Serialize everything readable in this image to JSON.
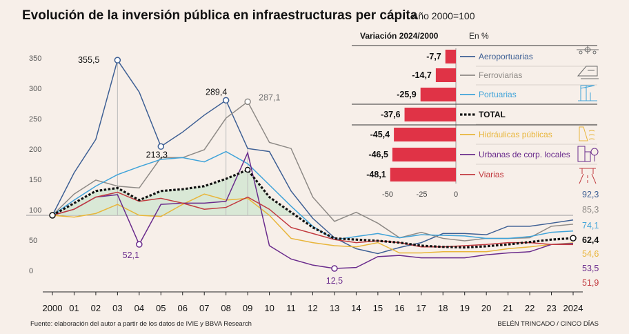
{
  "title": "Evolución de la inversión pública en infraestructuras per cápita",
  "subtitle": "Año 2000=100",
  "source": "Fuente: elaboración del autor a partir de los datos de IVIE y BBVA Research",
  "credit": "BELÉN TRINCADO / CINCO DÍAS",
  "chart_data": [
    {
      "type": "line",
      "x": [
        "2000",
        "01",
        "02",
        "03",
        "04",
        "05",
        "06",
        "07",
        "08",
        "09",
        "10",
        "11",
        "12",
        "13",
        "14",
        "15",
        "16",
        "17",
        "18",
        "19",
        "20",
        "21",
        "22",
        "23",
        "2024"
      ],
      "yticks": [
        "350",
        "300",
        "250",
        "200",
        "150",
        "100",
        "50",
        "0"
      ],
      "ylim": [
        0,
        350
      ],
      "baseline": 100,
      "series": [
        {
          "name": "Aeroportuarias",
          "color": "#3d5f94",
          "values": [
            100,
            170,
            225,
            355.5,
            303,
            213.3,
            237,
            265,
            289.4,
            210,
            205,
            140,
            95,
            63,
            45,
            37,
            47,
            55,
            70,
            70,
            68,
            82,
            82,
            87,
            92.3
          ]
        },
        {
          "name": "Ferroviarias",
          "color": "#8e8a86",
          "values": [
            100,
            135,
            158,
            148,
            145,
            195,
            195,
            208,
            260,
            287.1,
            220,
            210,
            130,
            90,
            105,
            87,
            63,
            72,
            62,
            58,
            62,
            62,
            63,
            82,
            85.3
          ]
        },
        {
          "name": "Portuarias",
          "color": "#3fa3d9",
          "values": [
            100,
            125,
            148,
            167,
            180,
            192,
            195,
            188,
            205,
            185,
            150,
            115,
            82,
            60,
            65,
            70,
            63,
            68,
            67,
            66,
            62,
            62,
            65,
            72,
            74.1
          ]
        },
        {
          "name": "TOTAL",
          "color": "#111111",
          "values": [
            100,
            120,
            140,
            145,
            125,
            140,
            143,
            148,
            160,
            175,
            130,
            105,
            80,
            62,
            60,
            58,
            55,
            50,
            48,
            47,
            49,
            52,
            56,
            60,
            62.4
          ]
        },
        {
          "name": "Hidráulicas públicas",
          "color": "#e8b53a",
          "values": [
            100,
            97,
            103,
            118,
            100,
            98,
            118,
            135,
            125,
            128,
            100,
            62,
            55,
            50,
            48,
            55,
            38,
            38,
            40,
            40,
            40,
            45,
            48,
            52,
            54.6
          ]
        },
        {
          "name": "Urbanas de corp. locales",
          "color": "#6a2b8c",
          "values": [
            100,
            110,
            130,
            134,
            52.1,
            118,
            120,
            120,
            123,
            203,
            50,
            28,
            18,
            12.5,
            14,
            32,
            34,
            30,
            30,
            30,
            35,
            38,
            40,
            52,
            53.5
          ]
        },
        {
          "name": "Viarias",
          "color": "#c23a3f",
          "values": [
            100,
            110,
            130,
            138,
            123,
            128,
            120,
            110,
            113,
            130,
            110,
            80,
            70,
            60,
            55,
            58,
            55,
            48,
            48,
            50,
            52,
            55,
            55,
            52,
            51.9
          ]
        }
      ],
      "annotations": [
        {
          "label": "355,5",
          "x": "03",
          "y": 355.5
        },
        {
          "label": "213,3",
          "x": "05",
          "y": 213.3
        },
        {
          "label": "289,4",
          "x": "08",
          "y": 289.4
        },
        {
          "label": "287,1",
          "x": "09",
          "y": 287.1
        },
        {
          "label": "52,1",
          "x": "04",
          "y": 52.1
        },
        {
          "label": "12,5",
          "x": "13",
          "y": 12.5
        }
      ],
      "end_labels": [
        "92,3",
        "85,3",
        "74,1",
        "62,4",
        "54,6",
        "53,5",
        "51,9"
      ]
    },
    {
      "type": "bar",
      "title": "Variación 2024/2000",
      "unit": "En %",
      "categories": [
        "Aeroportuarias",
        "Ferroviarias",
        "Portuarias",
        "TOTAL",
        "Hidráulicas públicas",
        "Urbanas de corp. locales",
        "Viarias"
      ],
      "values": [
        -7.7,
        -14.7,
        -25.9,
        -37.6,
        -45.4,
        -46.5,
        -48.1
      ],
      "value_labels": [
        "-7,7",
        "-14,7",
        "-25,9",
        "-37,6",
        "-45,4",
        "-46,5",
        "-48,1"
      ],
      "xticks": [
        "-50",
        "-25",
        "0"
      ],
      "xlim": [
        -50,
        0
      ],
      "bar_color": "#e03346"
    }
  ],
  "icons": [
    "plane-icon",
    "train-icon",
    "port-crane-icon",
    "dam-icon",
    "buildings-icon",
    "road-icon"
  ]
}
